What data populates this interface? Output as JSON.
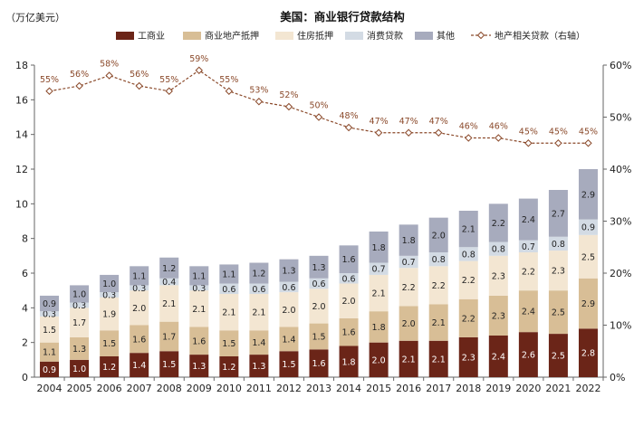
{
  "chart_data": {
    "type": "bar",
    "stacked": true,
    "title": "美国：商业银行贷款结构",
    "ylabel_left": "（万亿美元）",
    "categories": [
      "2004",
      "2005",
      "2006",
      "2007",
      "2008",
      "2009",
      "2010",
      "2011",
      "2012",
      "2013",
      "2014",
      "2015",
      "2016",
      "2017",
      "2018",
      "2019",
      "2020",
      "2021",
      "2022"
    ],
    "ylim_left": [
      0,
      18
    ],
    "yticks_left": [
      "0",
      "2",
      "4",
      "6",
      "8",
      "10",
      "12",
      "14",
      "16",
      "18"
    ],
    "ylim_right": [
      0,
      60
    ],
    "yticks_right": [
      "0%",
      "10%",
      "20%",
      "30%",
      "40%",
      "50%",
      "60%"
    ],
    "series": [
      {
        "name": "工商业",
        "color": "#6b2518",
        "values": [
          0.9,
          1.0,
          1.2,
          1.4,
          1.5,
          1.3,
          1.2,
          1.3,
          1.5,
          1.6,
          1.8,
          2.0,
          2.1,
          2.1,
          2.3,
          2.4,
          2.6,
          2.5,
          2.8
        ]
      },
      {
        "name": "商业地产抵押",
        "color": "#d8be96",
        "values": [
          1.1,
          1.3,
          1.5,
          1.6,
          1.7,
          1.6,
          1.5,
          1.4,
          1.4,
          1.5,
          1.6,
          1.8,
          2.0,
          2.1,
          2.2,
          2.3,
          2.4,
          2.5,
          2.9
        ]
      },
      {
        "name": "住房抵押",
        "color": "#f3e6d2",
        "values": [
          1.5,
          1.7,
          1.9,
          2.0,
          2.1,
          2.1,
          2.1,
          2.1,
          2.0,
          2.0,
          2.0,
          2.1,
          2.2,
          2.2,
          2.2,
          2.3,
          2.2,
          2.3,
          2.5
        ]
      },
      {
        "name": "消费贷款",
        "color": "#d3dbe4",
        "values": [
          0.3,
          0.3,
          0.3,
          0.3,
          0.4,
          0.3,
          0.6,
          0.6,
          0.6,
          0.6,
          0.6,
          0.7,
          0.7,
          0.8,
          0.8,
          0.8,
          0.7,
          0.8,
          0.9
        ]
      },
      {
        "name": "其他",
        "color": "#a7abbd",
        "values": [
          0.9,
          1.0,
          1.0,
          1.1,
          1.2,
          1.1,
          1.1,
          1.2,
          1.3,
          1.3,
          1.6,
          1.8,
          1.8,
          2.0,
          2.1,
          2.2,
          2.4,
          2.7,
          2.9
        ]
      }
    ],
    "line": {
      "name": "地产相关贷款（右轴）",
      "color": "#8b4a2b",
      "values": [
        55,
        56,
        58,
        56,
        55,
        59,
        55,
        53,
        52,
        50,
        48,
        47,
        47,
        47,
        46,
        46,
        45,
        45,
        45
      ],
      "labels": [
        "55%",
        "56%",
        "58%",
        "56%",
        "55%",
        "59%",
        "55%",
        "53%",
        "52%",
        "50%",
        "48%",
        "47%",
        "47%",
        "47%",
        "46%",
        "46%",
        "45%",
        "45%",
        "45%"
      ]
    },
    "legend_position": "top",
    "grid": false
  }
}
